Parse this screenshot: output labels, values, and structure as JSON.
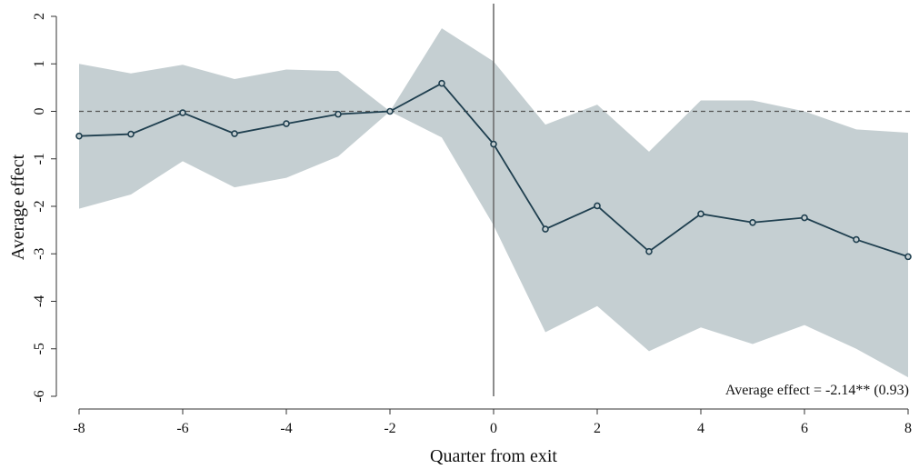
{
  "chart_data": {
    "type": "line",
    "title": "",
    "xlabel": "Quarter from exit",
    "ylabel": "Average effect",
    "xlim": [
      -8,
      8
    ],
    "ylim": [
      -6,
      2
    ],
    "xticks": [
      -8,
      -6,
      -4,
      -2,
      0,
      2,
      4,
      6,
      8
    ],
    "xtick_labels": [
      "-8",
      "-6",
      "-4",
      "-2",
      "0",
      "2",
      "4",
      "6",
      "8"
    ],
    "yticks": [
      -6,
      -5,
      -4,
      -3,
      -2,
      -1,
      0,
      1,
      2
    ],
    "ytick_labels": [
      "-6",
      "-5",
      "-4",
      "-3",
      "-2",
      "-1",
      "0",
      "1",
      "2"
    ],
    "grid": false,
    "reference_lines": {
      "horizontal_dashed_at": 0,
      "vertical_solid_at": 0
    },
    "x": [
      -8,
      -7,
      -6,
      -5,
      -4,
      -3,
      -2,
      -1,
      0,
      1,
      2,
      3,
      4,
      5,
      6,
      7,
      8
    ],
    "series": [
      {
        "values": [
          -0.52,
          -0.48,
          -0.03,
          -0.47,
          -0.26,
          -0.06,
          0.0,
          0.59,
          -0.69,
          -2.48,
          -1.99,
          -2.95,
          -2.16,
          -2.34,
          -2.24,
          -2.7,
          -3.06
        ],
        "ci_lower": [
          -2.05,
          -1.75,
          -1.05,
          -1.6,
          -1.4,
          -0.95,
          0.0,
          -0.55,
          -2.4,
          -4.65,
          -4.1,
          -5.05,
          -4.55,
          -4.9,
          -4.5,
          -5.0,
          -5.6
        ],
        "ci_upper": [
          1.0,
          0.8,
          0.98,
          0.68,
          0.88,
          0.85,
          0.0,
          1.75,
          1.05,
          -0.28,
          0.14,
          -0.85,
          0.23,
          0.23,
          0.0,
          -0.38,
          -0.45
        ]
      }
    ],
    "annotation": "Average effect = -2.14** (0.93)",
    "colors": {
      "line": "#1f3f4f",
      "band": "#c5cfd2",
      "axis": "#333333",
      "zero_line": "#555555",
      "vline": "#666666"
    }
  }
}
